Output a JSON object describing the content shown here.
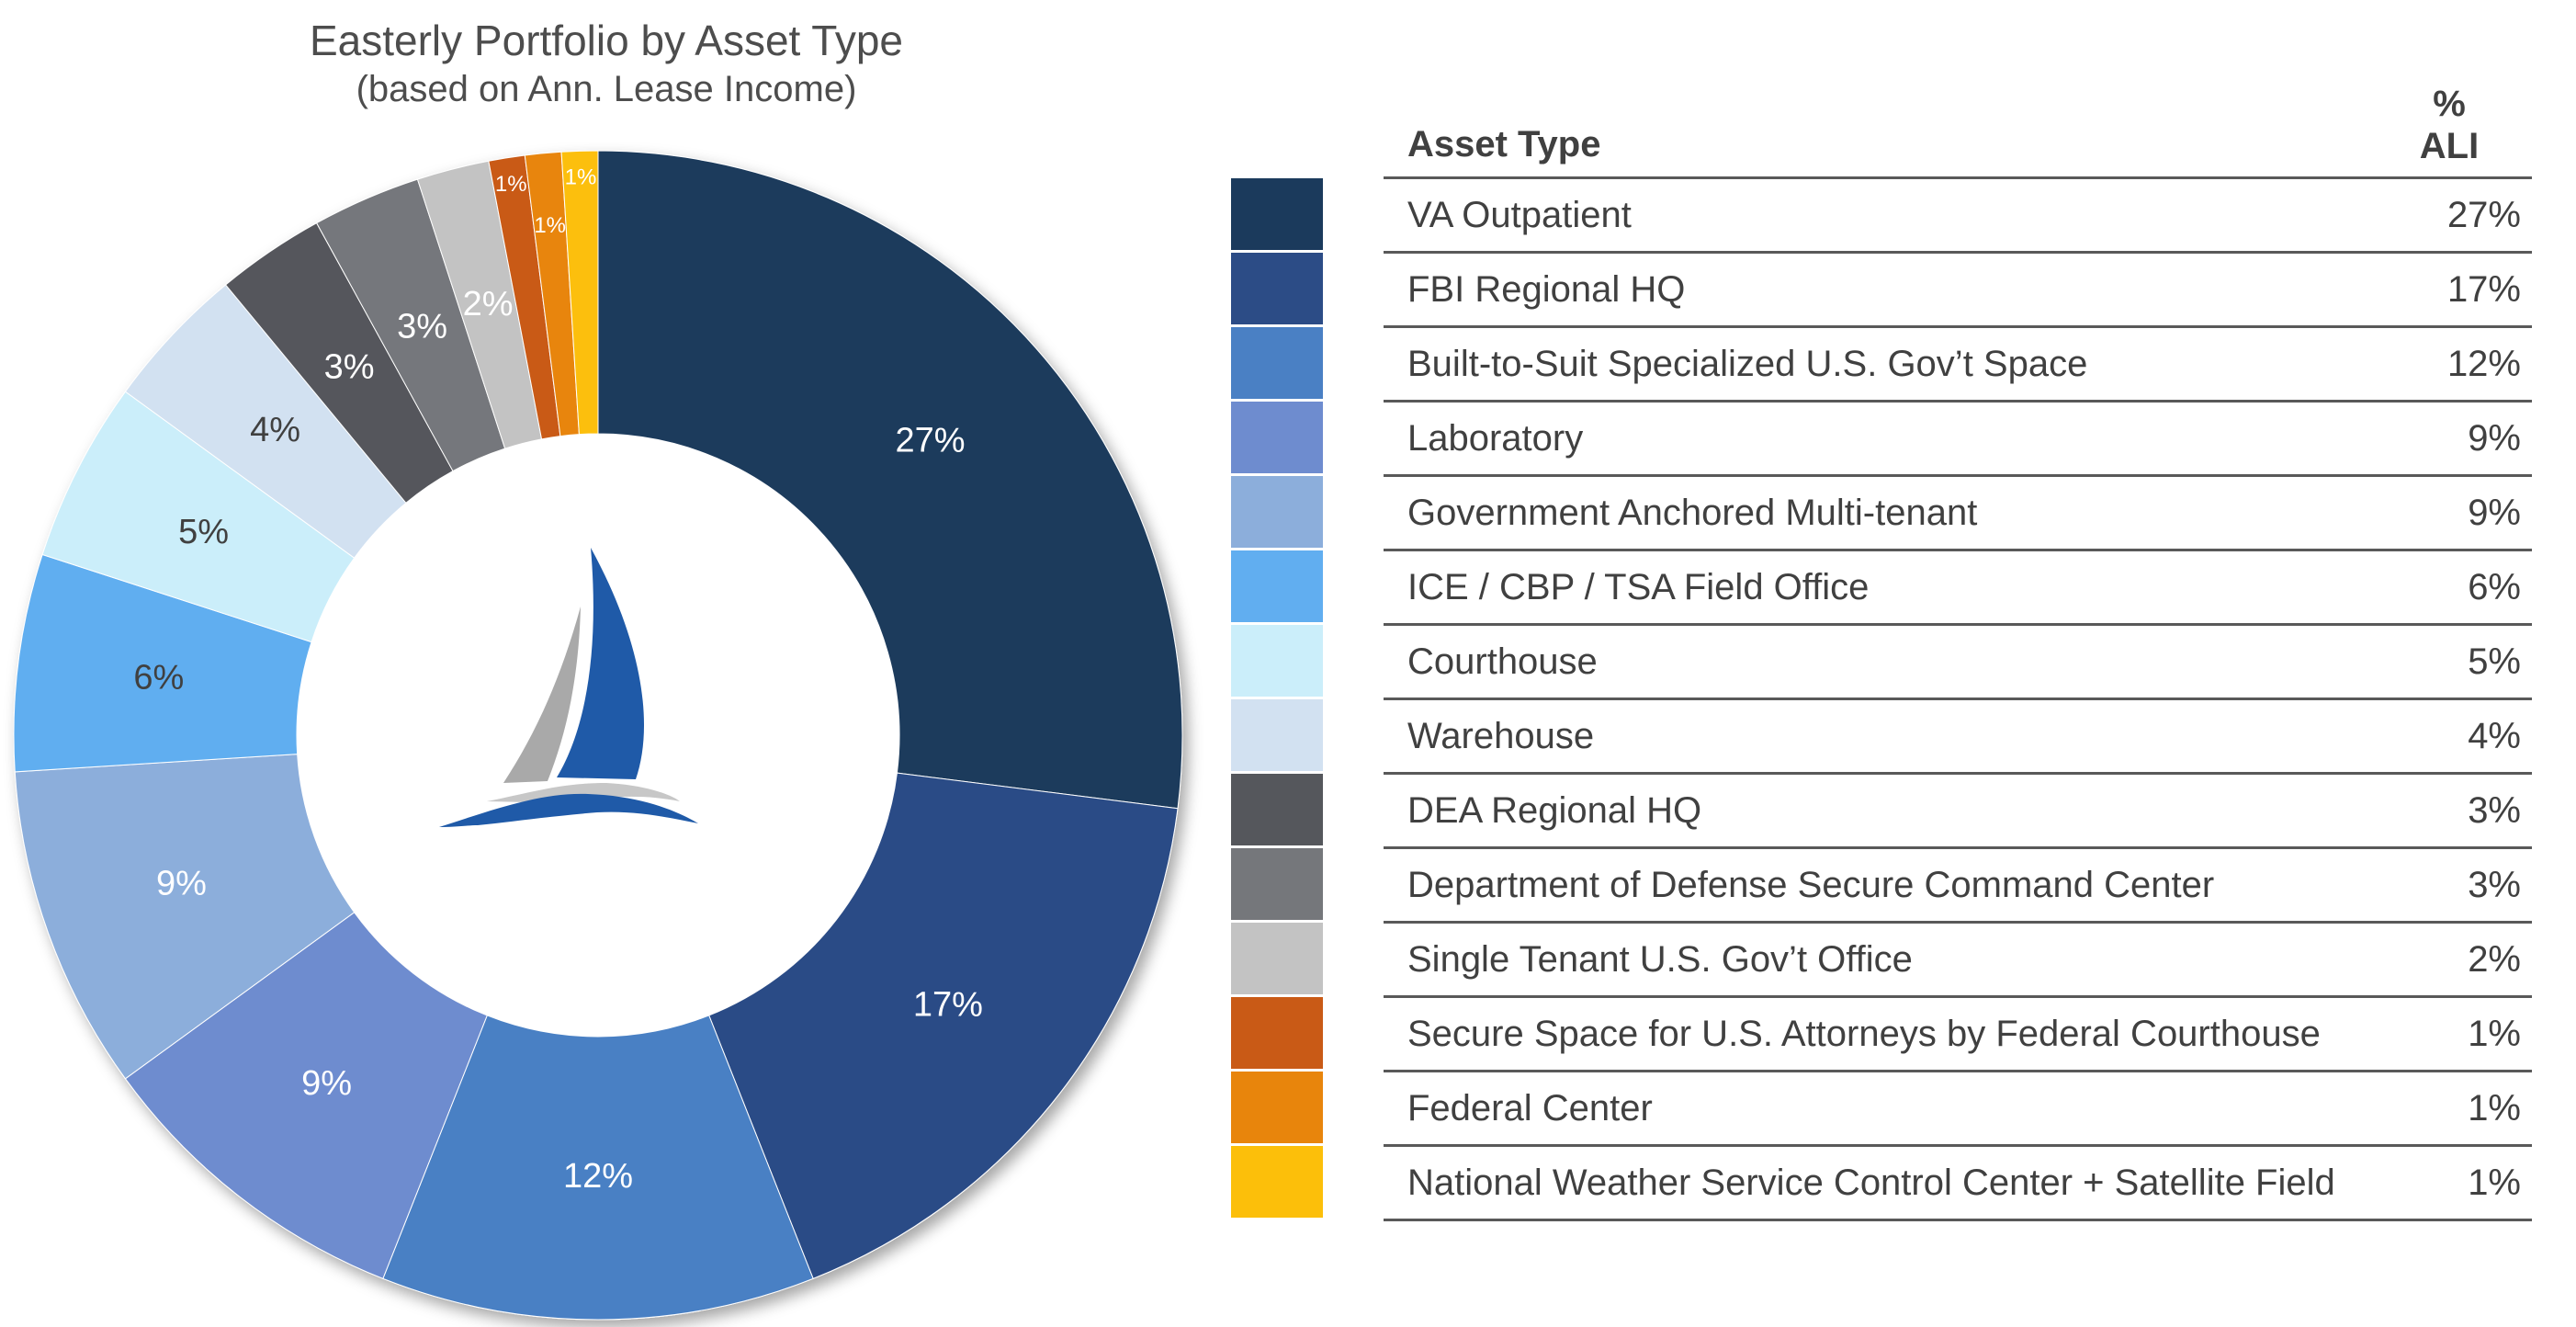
{
  "chart_data": {
    "type": "pie",
    "title": "Easterly Portfolio by Asset Type",
    "subtitle": "(based on Ann. Lease Income)",
    "categories": [
      "VA Outpatient",
      "FBI Regional HQ",
      "Built-to-Suit Specialized U.S. Gov’t Space",
      "Laboratory",
      "Government Anchored Multi-tenant",
      "ICE / CBP / TSA Field Office",
      "Courthouse",
      "Warehouse",
      "DEA Regional HQ",
      "Department of Defense Secure Command Center",
      "Single Tenant U.S. Gov’t Office",
      "Secure Space for U.S. Attorneys by Federal Courthouse",
      "Federal Center",
      "National Weather Service Control Center + Satellite Field"
    ],
    "values": [
      27,
      17,
      12,
      9,
      9,
      6,
      5,
      4,
      3,
      3,
      2,
      1,
      1,
      1
    ],
    "labels": [
      "27%",
      "17%",
      "12%",
      "9%",
      "9%",
      "6%",
      "5%",
      "4%",
      "3%",
      "3%",
      "2%",
      "1%",
      "1%",
      "1%"
    ],
    "colors": [
      "#1b3a5c",
      "#2c4c86",
      "#4a80c4",
      "#6e8ccf",
      "#8caedb",
      "#61aef0",
      "#cbeefa",
      "#d2e1f1",
      "#55575c",
      "#75777b",
      "#c3c3c3",
      "#c95a16",
      "#e8850c",
      "#fcbf0a"
    ],
    "label_colors": [
      "#ffffff",
      "#ffffff",
      "#ffffff",
      "#ffffff",
      "#ffffff",
      "#404040",
      "#404040",
      "#404040",
      "#ffffff",
      "#ffffff",
      "#ffffff",
      "#ffffff",
      "#ffffff",
      "#ffffff"
    ],
    "legend_position": "right"
  },
  "table": {
    "header_type": "Asset Type",
    "header_pct_line1": "%",
    "header_pct_line2": "ALI",
    "rows": [
      {
        "type": "VA Outpatient",
        "pct": "27%"
      },
      {
        "type": "FBI Regional HQ",
        "pct": "17%"
      },
      {
        "type": "Built-to-Suit Specialized U.S. Gov’t Space",
        "pct": "12%"
      },
      {
        "type": "Laboratory",
        "pct": "9%"
      },
      {
        "type": "Government Anchored Multi-tenant",
        "pct": "9%"
      },
      {
        "type": "ICE / CBP / TSA Field Office",
        "pct": "6%"
      },
      {
        "type": "Courthouse",
        "pct": "5%"
      },
      {
        "type": "Warehouse",
        "pct": "4%"
      },
      {
        "type": "DEA Regional HQ",
        "pct": "3%"
      },
      {
        "type": "Department of Defense Secure Command Center",
        "pct": "3%"
      },
      {
        "type": "Single Tenant U.S. Gov’t Office",
        "pct": "2%"
      },
      {
        "type": "Secure Space for U.S. Attorneys by Federal Courthouse",
        "pct": "1%"
      },
      {
        "type": "Federal Center",
        "pct": "1%"
      },
      {
        "type": "National Weather Service Control Center + Satellite Field",
        "pct": "1%"
      }
    ]
  },
  "logo": {
    "icon": "sailboat-logo-icon"
  }
}
